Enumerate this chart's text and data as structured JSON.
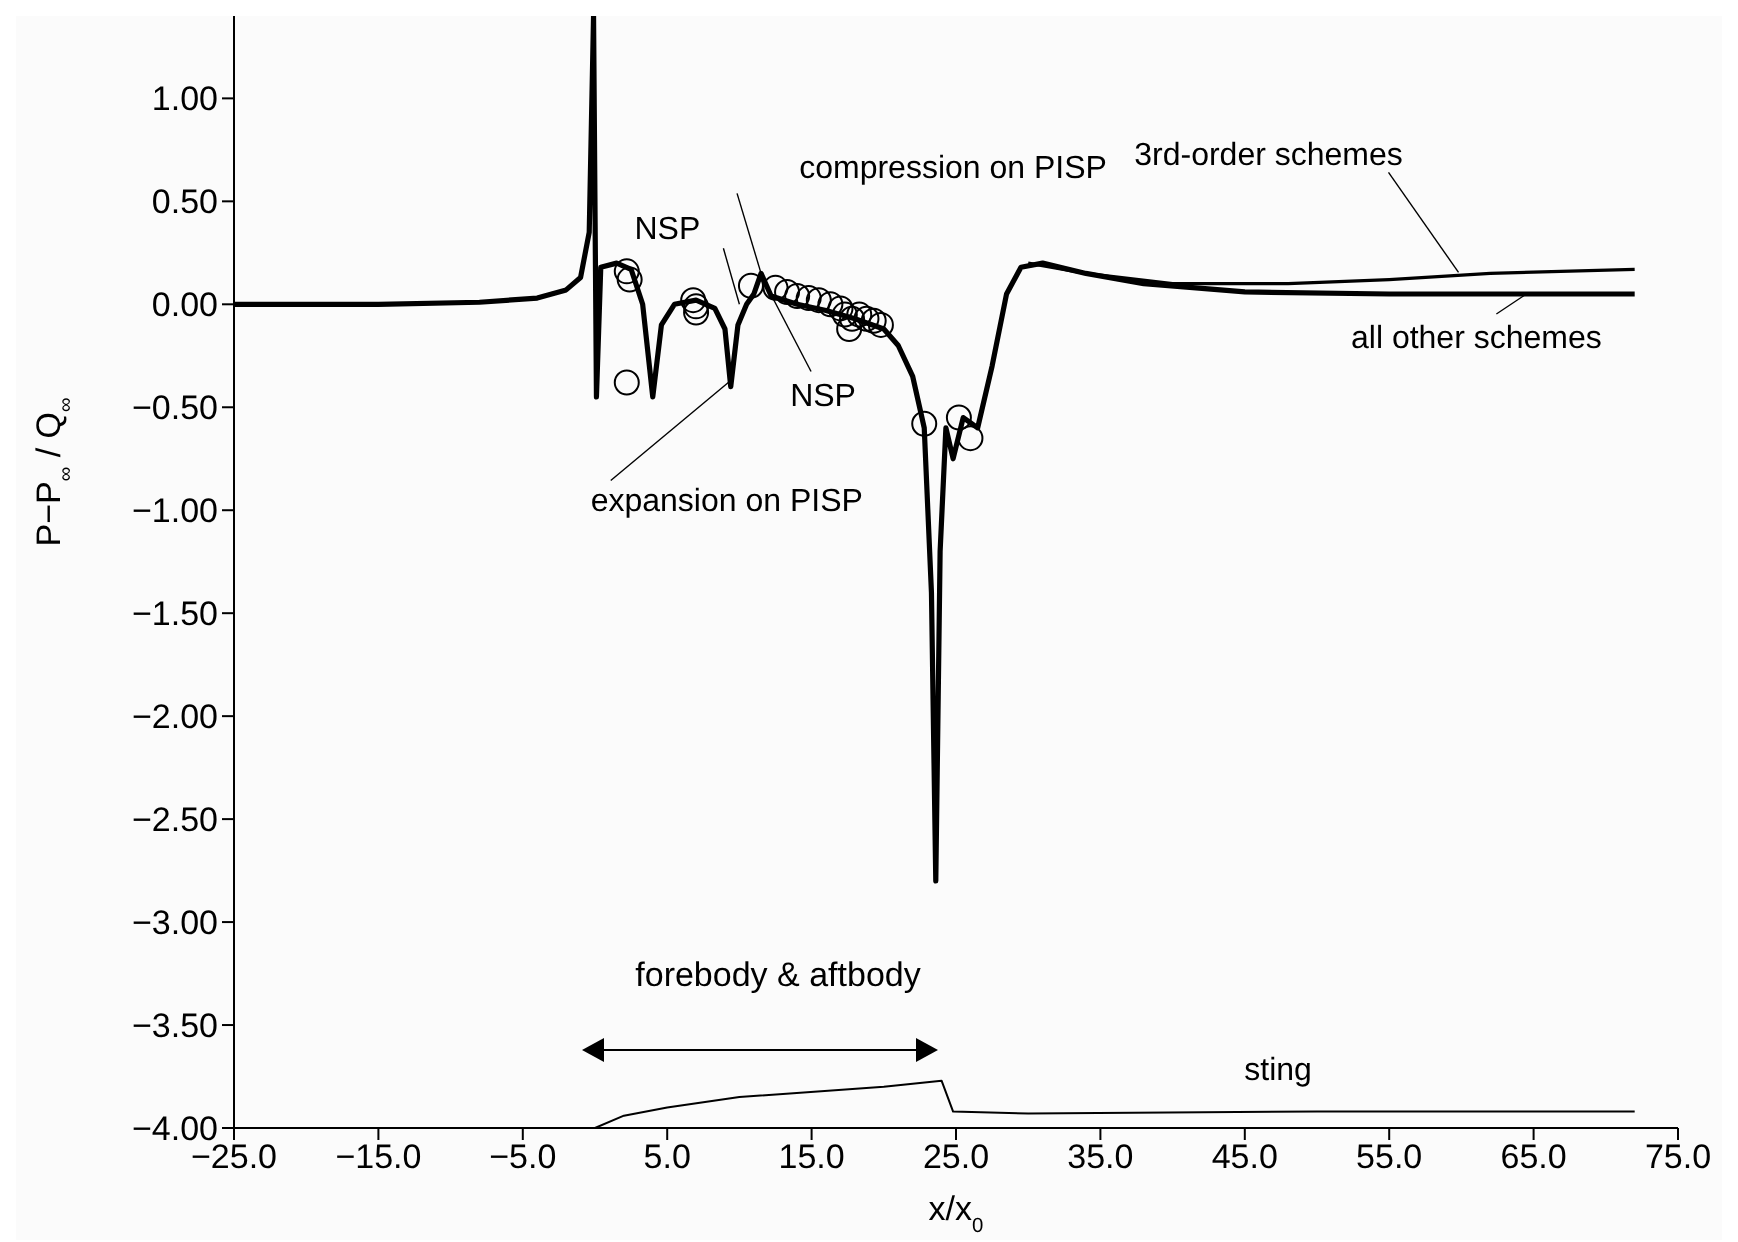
{
  "chart_data": {
    "type": "line",
    "xlabel": "x/x$_{0}$",
    "ylabel": "P−P$_{∞}$ / Q$_{∞}$",
    "xlim": [
      -25,
      75
    ],
    "ylim": [
      -4,
      1.4
    ],
    "xticks": [
      {
        "value": -25,
        "label": "−25.0"
      },
      {
        "value": -15,
        "label": "−15.0"
      },
      {
        "value": -5,
        "label": "−5.0"
      },
      {
        "value": 5,
        "label": "5.0"
      },
      {
        "value": 15,
        "label": "15.0"
      },
      {
        "value": 25,
        "label": "25.0"
      },
      {
        "value": 35,
        "label": "35.0"
      },
      {
        "value": 45,
        "label": "45.0"
      },
      {
        "value": 55,
        "label": "55.0"
      },
      {
        "value": 65,
        "label": "65.0"
      },
      {
        "value": 75,
        "label": "75.0"
      }
    ],
    "yticks": [
      {
        "value": 1,
        "label": "1.00"
      },
      {
        "value": 0.5,
        "label": "0.50"
      },
      {
        "value": 0,
        "label": "0.00"
      },
      {
        "value": -0.5,
        "label": "−0.50"
      },
      {
        "value": -1,
        "label": "−1.00"
      },
      {
        "value": -1.5,
        "label": "−1.50"
      },
      {
        "value": -2,
        "label": "−2.00"
      },
      {
        "value": -2.5,
        "label": "−2.50"
      },
      {
        "value": -3,
        "label": "−3.00"
      },
      {
        "value": -3.5,
        "label": "−3.50"
      },
      {
        "value": -4,
        "label": "−4.00"
      }
    ],
    "series": [
      {
        "color": "#000000",
        "x": [
          -25,
          -15,
          -8,
          -4,
          -2,
          -1,
          -0.4,
          -0.1,
          0.1,
          0.4,
          1.5,
          2.5,
          3.3,
          4,
          4.6,
          5.5,
          7,
          8.3,
          9,
          9.4,
          9.9,
          10.5,
          11,
          11.5,
          12.2,
          14,
          16,
          18,
          20,
          21,
          22,
          22.8,
          23.3,
          23.6,
          23.9,
          24.3,
          24.8,
          25.5,
          26.5,
          27.5,
          28.5,
          29.5,
          31,
          34,
          38,
          45,
          55,
          65,
          72
        ],
        "values": [
          0,
          0,
          0.01,
          0.03,
          0.07,
          0.13,
          0.35,
          1.4,
          -0.45,
          0.18,
          0.2,
          0.17,
          0,
          -0.45,
          -0.1,
          0,
          0.02,
          -0.02,
          -0.12,
          -0.4,
          -0.1,
          0,
          0.05,
          0.15,
          0.04,
          0,
          -0.03,
          -0.07,
          -0.12,
          -0.2,
          -0.35,
          -0.6,
          -1.4,
          -2.8,
          -1.2,
          -0.6,
          -0.75,
          -0.55,
          -0.6,
          -0.3,
          0.05,
          0.18,
          0.2,
          0.15,
          0.1,
          0.06,
          0.05,
          0.05,
          0.05
        ]
      },
      {
        "color": "#000000",
        "x": [
          30,
          34,
          40,
          48,
          55,
          62,
          72
        ],
        "values": [
          0.2,
          0.15,
          0.1,
          0.1,
          0.12,
          0.15,
          0.17
        ]
      },
      {
        "type": "scatter",
        "color": "#000000",
        "marker": "circle",
        "x": [
          2.2,
          2.4,
          2.2,
          6.8,
          7,
          7,
          10.8,
          12.5,
          13.3,
          14,
          14.8,
          15.5,
          16.3,
          17,
          17.3,
          17.8,
          18.3,
          18.8,
          19.3,
          19.8,
          17.6,
          22.8,
          25.2,
          26
        ],
        "values": [
          0.16,
          0.12,
          -0.38,
          0.02,
          -0.01,
          -0.04,
          0.09,
          0.08,
          0.06,
          0.04,
          0.03,
          0.02,
          0,
          -0.02,
          -0.05,
          -0.07,
          -0.05,
          -0.07,
          -0.08,
          -0.1,
          -0.12,
          -0.58,
          -0.55,
          -0.65
        ]
      },
      {
        "color": "#000000",
        "x": [
          0,
          2,
          5,
          10,
          20,
          24,
          24.8,
          30,
          50,
          72
        ],
        "values": [
          -4,
          -3.94,
          -3.9,
          -3.85,
          -3.8,
          -3.77,
          -3.92,
          -3.93,
          -3.92,
          -3.92
        ]
      }
    ],
    "annotations": [
      {
        "text": "NSP",
        "x": 10,
        "y": 0
      },
      {
        "text": "compression on PISP",
        "x": 11.5,
        "y": 0.15
      },
      {
        "text": "NSP",
        "x": 11.5,
        "y": 0.14
      },
      {
        "text": "expansion on PISP",
        "x": 9.4,
        "y": -0.37
      },
      {
        "text": "3rd-order schemes",
        "x": 59.8,
        "y": 0.155
      },
      {
        "text": "all other schemes",
        "x": 64.5,
        "y": 0.05
      },
      "forebody & aftbody",
      {
        "text": "sting",
        "x": 48,
        "y": -3.92
      }
    ]
  }
}
